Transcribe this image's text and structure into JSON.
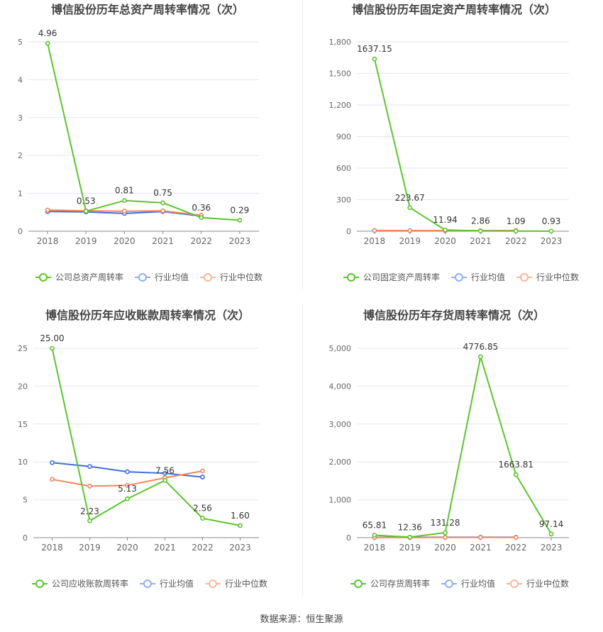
{
  "footer": {
    "source": "数据来源：恒生聚源"
  },
  "colors": {
    "company": "#5cc42f",
    "industry_avg": "#3f6fd8",
    "industry_median": "#f0875a",
    "avg_legend": "#8fb0ec",
    "median_legend": "#f5b79a",
    "grid": "#e3e6ee",
    "axis": "#666666",
    "label": "#333333",
    "title": "#444444"
  },
  "chart_data": [
    {
      "type": "line",
      "title": "博信股份历年总资产周转率情况（次）",
      "categories": [
        "2018",
        "2019",
        "2020",
        "2021",
        "2022",
        "2023"
      ],
      "ylim": [
        0,
        5
      ],
      "yticks": [
        0,
        1,
        2,
        3,
        4,
        5
      ],
      "ytick_labels": [
        "0",
        "1",
        "2",
        "3",
        "4",
        "5"
      ],
      "grid": true,
      "legend_position": "bottom",
      "series": [
        {
          "name": "公司总资产周转率",
          "role": "company",
          "values": [
            4.96,
            0.53,
            0.81,
            0.75,
            0.36,
            0.29
          ],
          "labels": [
            "4.96",
            "0.53",
            "0.81",
            "0.75",
            "0.36",
            "0.29"
          ]
        },
        {
          "name": "行业均值",
          "role": "industry_avg",
          "values": [
            0.52,
            0.51,
            0.47,
            0.52,
            0.4,
            null
          ]
        },
        {
          "name": "行业中位数",
          "role": "industry_median",
          "values": [
            0.56,
            0.54,
            0.53,
            0.54,
            0.42,
            null
          ]
        }
      ]
    },
    {
      "type": "line",
      "title": "博信股份历年固定资产周转率情况（次）",
      "categories": [
        "2018",
        "2019",
        "2020",
        "2021",
        "2022",
        "2023"
      ],
      "ylim": [
        0,
        1800
      ],
      "yticks": [
        0,
        300,
        600,
        900,
        1200,
        1500,
        1800
      ],
      "ytick_labels": [
        "0",
        "300",
        "600",
        "900",
        "1,200",
        "1,500",
        "1,800"
      ],
      "grid": true,
      "legend_position": "bottom",
      "series": [
        {
          "name": "公司固定资产周转率",
          "role": "company",
          "values": [
            1637.15,
            223.67,
            11.94,
            2.86,
            1.09,
            0.93
          ],
          "labels": [
            "1637.15",
            "223.67",
            "11.94",
            "2.86",
            "1.09",
            "0.93"
          ]
        },
        {
          "name": "行业均值",
          "role": "industry_avg",
          "values": [
            6,
            5,
            4,
            4,
            5,
            null
          ]
        },
        {
          "name": "行业中位数",
          "role": "industry_median",
          "values": [
            7,
            6,
            6,
            6,
            7,
            null
          ]
        }
      ]
    },
    {
      "type": "line",
      "title": "博信股份历年应收账款周转率情况（次）",
      "categories": [
        "2018",
        "2019",
        "2020",
        "2021",
        "2022",
        "2023"
      ],
      "ylim": [
        0,
        25
      ],
      "yticks": [
        0,
        5,
        10,
        15,
        20,
        25
      ],
      "ytick_labels": [
        "0",
        "5",
        "10",
        "15",
        "20",
        "25"
      ],
      "grid": true,
      "legend_position": "bottom",
      "series": [
        {
          "name": "公司应收账款周转率",
          "role": "company",
          "values": [
            25.0,
            2.23,
            5.13,
            7.56,
            2.56,
            1.6
          ],
          "labels": [
            "25.00",
            "2.23",
            "5.13",
            "7.56",
            "2.56",
            "1.60"
          ]
        },
        {
          "name": "行业均值",
          "role": "industry_avg",
          "values": [
            9.9,
            9.4,
            8.7,
            8.5,
            8.0,
            null
          ]
        },
        {
          "name": "行业中位数",
          "role": "industry_median",
          "values": [
            7.7,
            6.8,
            6.9,
            7.9,
            8.8,
            null
          ]
        }
      ]
    },
    {
      "type": "line",
      "title": "博信股份历年存货周转率情况（次）",
      "categories": [
        "2018",
        "2019",
        "2020",
        "2021",
        "2022",
        "2023"
      ],
      "ylim": [
        0,
        5000
      ],
      "yticks": [
        0,
        1000,
        2000,
        3000,
        4000,
        5000
      ],
      "ytick_labels": [
        "0",
        "1,000",
        "2,000",
        "3,000",
        "4,000",
        "5,000"
      ],
      "grid": true,
      "legend_position": "bottom",
      "series": [
        {
          "name": "公司存货周转率",
          "role": "company",
          "values": [
            65.81,
            12.36,
            131.28,
            4776.85,
            1663.81,
            97.14
          ],
          "labels": [
            "65.81",
            "12.36",
            "131.28",
            "4776.85",
            "1663.81",
            "97.14"
          ]
        },
        {
          "name": "行业均值",
          "role": "industry_avg",
          "values": [
            10,
            10,
            11,
            12,
            12,
            null
          ]
        },
        {
          "name": "行业中位数",
          "role": "industry_median",
          "values": [
            6,
            6,
            7,
            7,
            7,
            null
          ]
        }
      ]
    }
  ]
}
